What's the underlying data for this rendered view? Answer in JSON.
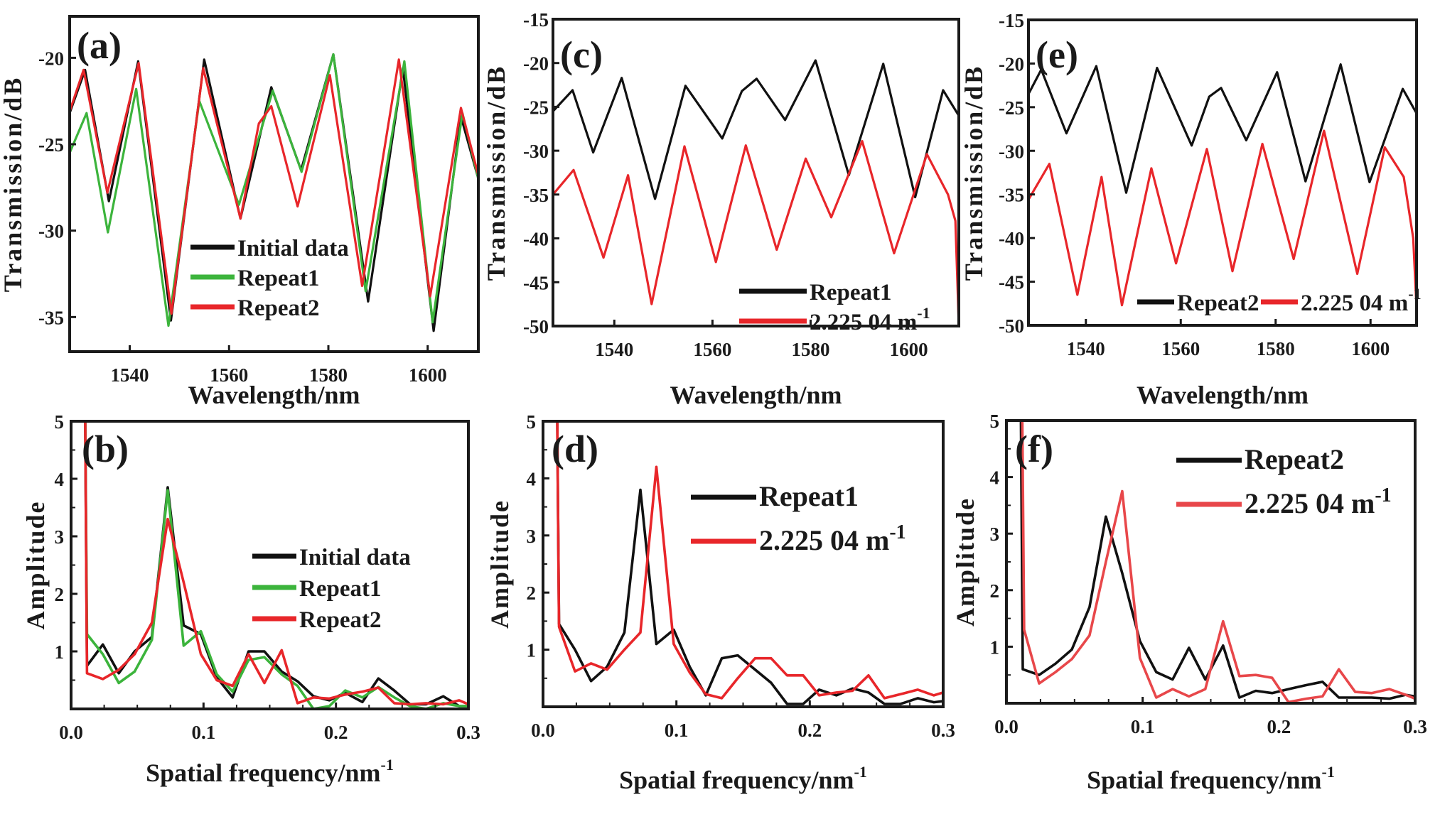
{
  "figure": {
    "description": "Transmission spectra and spatial frequency spectra, six panels (a)-(f)"
  },
  "chart_data": [
    {
      "id": "a",
      "panel_label": "(a)",
      "type": "line",
      "xlabel": "Wavelength/nm",
      "ylabel": "Transmission/dB",
      "xlim": [
        1527.9,
        1610.2
      ],
      "ylim": [
        -37.0,
        -17.6
      ],
      "xticks": [
        1540,
        1560,
        1580,
        1600
      ],
      "xtick_labels": [
        "1540",
        "1560",
        "1580",
        "1600"
      ],
      "yticks": [
        -20,
        -25,
        -30,
        -35
      ],
      "ytick_labels": [
        "-20",
        "-25",
        "-30",
        "-35"
      ],
      "grid": false,
      "legend_position": "lower-center",
      "series": [
        {
          "name": "Initial data",
          "color": "#111111",
          "x": [
            1527.9,
            1531,
            1535.8,
            1541.7,
            1548.3,
            1555,
            1562.3,
            1568.5,
            1574.5,
            1581,
            1588,
            1595,
            1601.2,
            1606.7,
            1610.2
          ],
          "y": [
            -23.2,
            -20.7,
            -28.3,
            -20.2,
            -35.2,
            -20.1,
            -29.3,
            -21.7,
            -26.5,
            -19.8,
            -34.1,
            -20.6,
            -35.8,
            -23.4,
            -27.0
          ]
        },
        {
          "name": "Repeat1",
          "color": "#3cb43c",
          "x": [
            1527.9,
            1531.3,
            1535.6,
            1541.3,
            1547.8,
            1554,
            1562,
            1568.8,
            1574.6,
            1581,
            1587.5,
            1595.3,
            1601,
            1607,
            1610.2
          ],
          "y": [
            -25.5,
            -23.2,
            -30.1,
            -21.8,
            -35.5,
            -22.5,
            -28.5,
            -21.9,
            -26.6,
            -19.8,
            -33.5,
            -20.2,
            -35.3,
            -23.2,
            -27.0
          ]
        },
        {
          "name": "Repeat2",
          "color": "#e8262a",
          "x": [
            1527.9,
            1530.7,
            1535.5,
            1541.8,
            1548.4,
            1554.8,
            1562.3,
            1566,
            1568.5,
            1573.8,
            1580.3,
            1586.8,
            1594.2,
            1600.5,
            1606.7,
            1610.2
          ],
          "y": [
            -23.1,
            -20.7,
            -27.8,
            -20.3,
            -34.8,
            -20.6,
            -29.3,
            -23.8,
            -22.8,
            -28.6,
            -21.0,
            -33.2,
            -20.1,
            -33.8,
            -22.9,
            -26.8
          ]
        }
      ]
    },
    {
      "id": "b",
      "panel_label": "(b)",
      "type": "line",
      "xlabel": "Spatial frequency/nm",
      "xlabel_sup": "-1",
      "ylabel": "Amplitude",
      "xlim": [
        0,
        0.3
      ],
      "ylim": [
        0,
        5
      ],
      "xticks": [
        0.0,
        0.1,
        0.2,
        0.3
      ],
      "xtick_labels": [
        "0.0",
        "0.1",
        "0.2",
        "0.3"
      ],
      "yticks": [
        1,
        2,
        3,
        4,
        5
      ],
      "ytick_labels": [
        "1",
        "2",
        "3",
        "4",
        "5"
      ],
      "grid": false,
      "legend_position": "center-right",
      "series": [
        {
          "name": "Initial data",
          "color": "#111111",
          "x": [
            0.0105,
            0.012,
            0.024,
            0.036,
            0.048,
            0.061,
            0.073,
            0.085,
            0.098,
            0.11,
            0.122,
            0.134,
            0.146,
            0.159,
            0.171,
            0.183,
            0.195,
            0.207,
            0.22,
            0.232,
            0.244,
            0.256,
            0.268,
            0.281,
            0.293,
            0.3
          ],
          "y": [
            5.5,
            0.75,
            1.12,
            0.62,
            1.0,
            1.25,
            3.85,
            1.45,
            1.3,
            0.55,
            0.2,
            1.0,
            1.0,
            0.65,
            0.48,
            0.22,
            0.15,
            0.28,
            0.12,
            0.53,
            0.32,
            0.08,
            0.08,
            0.22,
            0.05,
            0.05
          ]
        },
        {
          "name": "Repeat1",
          "color": "#3cb43c",
          "x": [
            0.0105,
            0.012,
            0.024,
            0.036,
            0.048,
            0.061,
            0.073,
            0.085,
            0.098,
            0.11,
            0.122,
            0.134,
            0.146,
            0.159,
            0.171,
            0.183,
            0.195,
            0.207,
            0.22,
            0.232,
            0.244,
            0.256,
            0.268,
            0.281,
            0.293,
            0.3
          ],
          "y": [
            5.5,
            1.3,
            0.95,
            0.45,
            0.65,
            1.2,
            3.8,
            1.1,
            1.35,
            0.6,
            0.3,
            0.85,
            0.9,
            0.6,
            0.4,
            0.0,
            0.05,
            0.32,
            0.2,
            0.38,
            0.2,
            0.05,
            0.0,
            0.1,
            0.05,
            0.05
          ]
        },
        {
          "name": "Repeat2",
          "color": "#e8262a",
          "x": [
            0.0105,
            0.012,
            0.024,
            0.036,
            0.048,
            0.061,
            0.073,
            0.085,
            0.098,
            0.11,
            0.122,
            0.134,
            0.146,
            0.159,
            0.171,
            0.183,
            0.195,
            0.207,
            0.22,
            0.232,
            0.244,
            0.256,
            0.268,
            0.281,
            0.293,
            0.3
          ],
          "y": [
            5.5,
            0.62,
            0.52,
            0.68,
            0.95,
            1.5,
            3.3,
            2.2,
            0.95,
            0.5,
            0.4,
            0.95,
            0.45,
            1.02,
            0.1,
            0.2,
            0.18,
            0.25,
            0.3,
            0.37,
            0.1,
            0.08,
            0.1,
            0.08,
            0.15,
            0.08
          ]
        }
      ]
    },
    {
      "id": "c",
      "panel_label": "(c)",
      "type": "line",
      "xlabel": "Wavelength/nm",
      "ylabel": "Transmission/dB",
      "xlim": [
        1527.5,
        1610.2
      ],
      "ylim": [
        -50,
        -15
      ],
      "xticks": [
        1540,
        1560,
        1580,
        1600
      ],
      "xtick_labels": [
        "1540",
        "1560",
        "1580",
        "1600"
      ],
      "yticks": [
        -15,
        -20,
        -25,
        -30,
        -35,
        -40,
        -45,
        -50
      ],
      "ytick_labels": [
        "-15",
        "-20",
        "-25",
        "-30",
        "-35",
        "-40",
        "-45",
        "-50"
      ],
      "grid": false,
      "legend_position": "lower-right",
      "series": [
        {
          "name": "Repeat1",
          "color": "#111111",
          "x": [
            1527.5,
            1531.5,
            1535.7,
            1541.5,
            1548.3,
            1554.5,
            1562,
            1566,
            1569,
            1574.8,
            1581,
            1587.8,
            1594.8,
            1601.3,
            1607,
            1610.2
          ],
          "y": [
            -25.5,
            -23.1,
            -30.2,
            -21.7,
            -35.5,
            -22.6,
            -28.6,
            -23.2,
            -21.8,
            -26.5,
            -19.7,
            -32.8,
            -20.1,
            -35.3,
            -23.1,
            -26.0
          ]
        },
        {
          "name": "2.225 04 m",
          "name_sup": "-1",
          "color": "#e8262a",
          "x": [
            1527.5,
            1531.7,
            1537.8,
            1542.8,
            1547.6,
            1554.3,
            1560.7,
            1566.8,
            1573.1,
            1579,
            1584.2,
            1590.5,
            1597,
            1603.7,
            1608,
            1609.5,
            1610.2
          ],
          "y": [
            -35.0,
            -32.2,
            -42.2,
            -32.8,
            -47.5,
            -29.5,
            -42.7,
            -29.4,
            -41.3,
            -30.9,
            -37.6,
            -28.9,
            -41.7,
            -30.4,
            -35.0,
            -38.0,
            -50.0
          ]
        }
      ]
    },
    {
      "id": "d",
      "panel_label": "(d)",
      "type": "line",
      "xlabel": "Spatial frequency/nm",
      "xlabel_sup": "-1",
      "ylabel": "Amplitude",
      "xlim": [
        0,
        0.3
      ],
      "ylim": [
        0,
        5
      ],
      "xticks": [
        0.0,
        0.1,
        0.2,
        0.3
      ],
      "xtick_labels": [
        "0.0",
        "0.1",
        "0.2",
        "0.3"
      ],
      "yticks": [
        1,
        2,
        3,
        4,
        5
      ],
      "ytick_labels": [
        "1",
        "2",
        "3",
        "4",
        "5"
      ],
      "grid": false,
      "legend_position": "top-right",
      "series": [
        {
          "name": "Repeat1",
          "color": "#111111",
          "x": [
            0.0105,
            0.012,
            0.024,
            0.036,
            0.048,
            0.061,
            0.073,
            0.085,
            0.098,
            0.11,
            0.122,
            0.134,
            0.146,
            0.159,
            0.171,
            0.183,
            0.195,
            0.207,
            0.22,
            0.232,
            0.244,
            0.256,
            0.268,
            0.281,
            0.293,
            0.3
          ],
          "y": [
            5.5,
            1.45,
            1.0,
            0.45,
            0.7,
            1.3,
            3.8,
            1.1,
            1.35,
            0.7,
            0.2,
            0.85,
            0.9,
            0.65,
            0.42,
            0.05,
            0.05,
            0.3,
            0.2,
            0.32,
            0.25,
            0.05,
            0.05,
            0.15,
            0.08,
            0.1
          ]
        },
        {
          "name": "2.225 04 m",
          "name_sup": "-1",
          "color": "#e8262a",
          "x": [
            0.0105,
            0.012,
            0.024,
            0.036,
            0.048,
            0.061,
            0.073,
            0.085,
            0.098,
            0.11,
            0.122,
            0.134,
            0.146,
            0.159,
            0.171,
            0.183,
            0.195,
            0.207,
            0.22,
            0.232,
            0.244,
            0.256,
            0.268,
            0.281,
            0.293,
            0.3
          ],
          "y": [
            5.5,
            1.4,
            0.62,
            0.76,
            0.65,
            1.0,
            1.3,
            4.2,
            1.1,
            0.6,
            0.22,
            0.15,
            0.5,
            0.85,
            0.85,
            0.55,
            0.55,
            0.2,
            0.25,
            0.28,
            0.55,
            0.15,
            0.22,
            0.3,
            0.2,
            0.25
          ]
        }
      ]
    },
    {
      "id": "e",
      "panel_label": "(e)",
      "type": "line",
      "xlabel": "Wavelength/nm",
      "ylabel": "Transmission/dB",
      "xlim": [
        1527.9,
        1609.7
      ],
      "ylim": [
        -50,
        -15
      ],
      "xticks": [
        1540,
        1560,
        1580,
        1600
      ],
      "xtick_labels": [
        "1540",
        "1560",
        "1580",
        "1600"
      ],
      "yticks": [
        -15,
        -20,
        -25,
        -30,
        -35,
        -40,
        -45,
        -50
      ],
      "ytick_labels": [
        "-15",
        "-20",
        "-25",
        "-30",
        "-35",
        "-40",
        "-45",
        "-50"
      ],
      "grid": false,
      "legend_position": "bottom-right",
      "series": [
        {
          "name": "Repeat2",
          "color": "#111111",
          "x": [
            1527.9,
            1530.6,
            1535.9,
            1542.2,
            1548.5,
            1555,
            1562.3,
            1566,
            1568.5,
            1573.8,
            1580.3,
            1586.3,
            1593.7,
            1599.8,
            1606.8,
            1609.7
          ],
          "y": [
            -23.5,
            -20.7,
            -28.0,
            -20.3,
            -34.8,
            -20.5,
            -29.4,
            -23.8,
            -22.8,
            -28.8,
            -21.0,
            -33.5,
            -20.1,
            -33.6,
            -22.9,
            -25.7
          ]
        },
        {
          "name": "2.225 04 m",
          "name_sup": "-1",
          "color": "#e8262a",
          "x": [
            1527.9,
            1532.3,
            1538.2,
            1543.3,
            1547.6,
            1553.8,
            1559,
            1565.5,
            1570.9,
            1577.2,
            1583.8,
            1590.2,
            1597.2,
            1603,
            1607,
            1609,
            1609.7
          ],
          "y": [
            -35.6,
            -31.5,
            -46.5,
            -33.0,
            -47.7,
            -32.0,
            -42.9,
            -29.8,
            -43.8,
            -29.2,
            -42.4,
            -27.7,
            -44.1,
            -29.6,
            -33.0,
            -40.0,
            -48.0
          ]
        }
      ]
    },
    {
      "id": "f",
      "panel_label": "(f)",
      "type": "line",
      "xlabel": "Spatial frequency/nm",
      "xlabel_sup": "-1",
      "ylabel": "Amplitude",
      "xlim": [
        0,
        0.3
      ],
      "ylim": [
        0,
        5
      ],
      "xticks": [
        0.0,
        0.1,
        0.2,
        0.3
      ],
      "xtick_labels": [
        "0.0",
        "0.1",
        "0.2",
        "0.3"
      ],
      "yticks": [
        1,
        2,
        3,
        4,
        5
      ],
      "ytick_labels": [
        "1",
        "2",
        "3",
        "4",
        "5"
      ],
      "grid": false,
      "legend_position": "top-right",
      "series": [
        {
          "name": "Repeat2",
          "color": "#111111",
          "x": [
            0.0105,
            0.012,
            0.024,
            0.036,
            0.048,
            0.061,
            0.073,
            0.085,
            0.098,
            0.11,
            0.122,
            0.134,
            0.146,
            0.159,
            0.171,
            0.183,
            0.195,
            0.207,
            0.22,
            0.232,
            0.244,
            0.256,
            0.268,
            0.281,
            0.293,
            0.3
          ],
          "y": [
            5.5,
            0.6,
            0.5,
            0.7,
            0.95,
            1.7,
            3.3,
            2.3,
            1.1,
            0.55,
            0.42,
            0.98,
            0.42,
            1.02,
            0.1,
            0.22,
            0.18,
            0.25,
            0.32,
            0.38,
            0.1,
            0.1,
            0.1,
            0.08,
            0.15,
            0.12
          ]
        },
        {
          "name": "2.225 04 m",
          "name_sup": "-1",
          "color": "#e8474a",
          "x": [
            0.0115,
            0.013,
            0.024,
            0.036,
            0.048,
            0.061,
            0.073,
            0.085,
            0.098,
            0.11,
            0.122,
            0.134,
            0.146,
            0.159,
            0.171,
            0.183,
            0.195,
            0.207,
            0.22,
            0.232,
            0.244,
            0.256,
            0.268,
            0.281,
            0.293,
            0.3
          ],
          "y": [
            5.5,
            1.3,
            0.35,
            0.55,
            0.78,
            1.2,
            2.5,
            3.75,
            0.8,
            0.1,
            0.25,
            0.12,
            0.25,
            1.45,
            0.48,
            0.5,
            0.45,
            0.02,
            0.08,
            0.12,
            0.6,
            0.2,
            0.18,
            0.25,
            0.15,
            0.08
          ]
        }
      ]
    }
  ]
}
